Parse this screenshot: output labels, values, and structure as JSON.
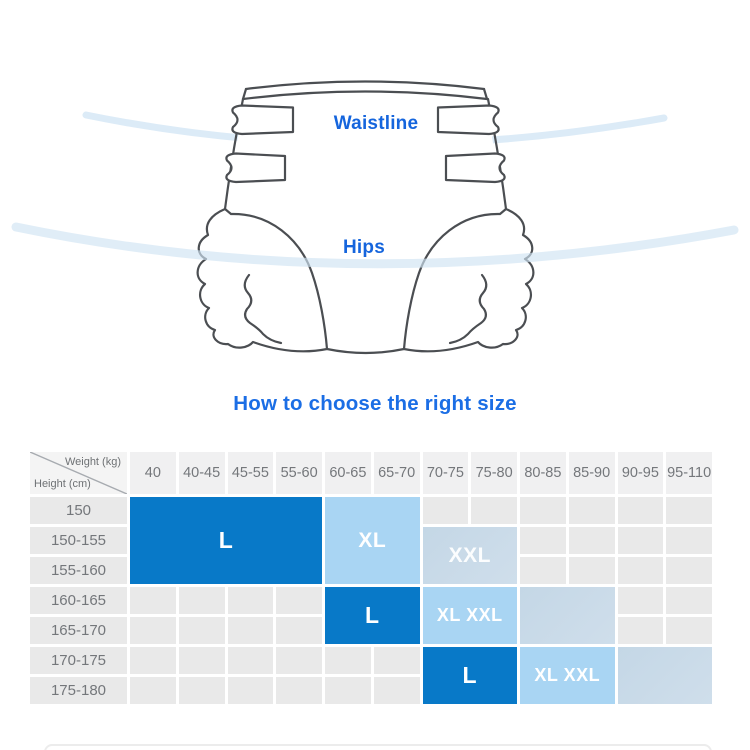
{
  "illustration": {
    "waistline_label": "Waistline",
    "hips_label": "Hips"
  },
  "heading": {
    "title": "How to choose the right size"
  },
  "size_chart": {
    "corner_top": "Weight (kg)",
    "corner_bottom": "Height (cm)",
    "weight_columns": [
      "40",
      "40-45",
      "45-55",
      "55-60",
      "60-65",
      "65-70",
      "70-75",
      "75-80",
      "80-85",
      "85-90",
      "90-95",
      "95-110"
    ],
    "height_rows": [
      "150",
      "150-155",
      "155-160",
      "160-165",
      "165-170",
      "170-175",
      "175-180"
    ],
    "regions": [
      {
        "label": "L",
        "style": "solid",
        "row": 2,
        "col": 2,
        "rows": 3,
        "cols": 4
      },
      {
        "label": "XL",
        "style": "light",
        "row": 2,
        "col": 6,
        "rows": 3,
        "cols": 2
      },
      {
        "label": "XXL",
        "style": "pale",
        "row": 3,
        "col": 8,
        "rows": 2,
        "cols": 2
      },
      {
        "label": "L",
        "style": "solid",
        "row": 5,
        "col": 6,
        "rows": 2,
        "cols": 2
      },
      {
        "label": "XL XXL",
        "style": "light",
        "row": 5,
        "col": 8,
        "rows": 2,
        "cols": 2
      },
      {
        "label": "",
        "style": "pale",
        "row": 5,
        "col": 10,
        "rows": 2,
        "cols": 2
      },
      {
        "label": "L",
        "style": "solid",
        "row": 7,
        "col": 8,
        "rows": 2,
        "cols": 2
      },
      {
        "label": "XL XXL",
        "style": "light",
        "row": 7,
        "col": 10,
        "rows": 2,
        "cols": 2
      },
      {
        "label": "",
        "style": "pale",
        "row": 7,
        "col": 12,
        "rows": 2,
        "cols": 2
      }
    ],
    "colors": {
      "solid": "#0879c8",
      "light": "#a9d5f3",
      "pale_start": "#c4d7e6",
      "pale_end": "#cfdeeb",
      "cell": "#e9e9e9",
      "header_cell": "#f0f0f1",
      "accent_blue": "#1b6ee5",
      "label_blue": "#1565dd"
    }
  },
  "chart_data": {
    "type": "table",
    "title": "How to choose the right size",
    "columns_weight_kg": [
      "40",
      "40-45",
      "45-55",
      "55-60",
      "60-65",
      "65-70",
      "70-75",
      "75-80",
      "80-85",
      "85-90",
      "90-95",
      "95-110"
    ],
    "rows_height_cm": [
      "150",
      "150-155",
      "155-160",
      "160-165",
      "165-170",
      "170-175",
      "175-180"
    ],
    "size_map": [
      {
        "size": "L",
        "weight_kg": "40-60",
        "height_cm": "150-160"
      },
      {
        "size": "XL",
        "weight_kg": "60-70",
        "height_cm": "150-160"
      },
      {
        "size": "XXL",
        "weight_kg": "70-80",
        "height_cm": "150-160"
      },
      {
        "size": "L",
        "weight_kg": "60-70",
        "height_cm": "160-170"
      },
      {
        "size": "XL XXL",
        "weight_kg": "70-80",
        "height_cm": "160-170"
      },
      {
        "size": "",
        "weight_kg": "80-90",
        "height_cm": "160-170"
      },
      {
        "size": "L",
        "weight_kg": "70-80",
        "height_cm": "170-180"
      },
      {
        "size": "XL XXL",
        "weight_kg": "80-90",
        "height_cm": "170-180"
      },
      {
        "size": "",
        "weight_kg": "90-110",
        "height_cm": "170-180"
      }
    ]
  }
}
